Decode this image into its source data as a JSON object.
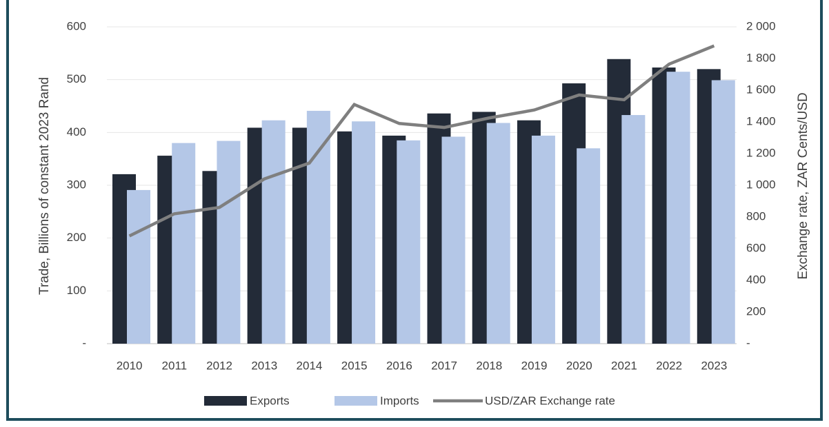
{
  "chart_data": {
    "type": "bar",
    "categories": [
      "2010",
      "2011",
      "2012",
      "2013",
      "2014",
      "2015",
      "2016",
      "2017",
      "2018",
      "2019",
      "2020",
      "2021",
      "2022",
      "2023"
    ],
    "series": [
      {
        "name": "Exports",
        "color": "#232b38",
        "values": [
          321,
          356,
          327,
          409,
          409,
          402,
          394,
          436,
          439,
          423,
          493,
          539,
          523,
          520
        ]
      },
      {
        "name": "Imports",
        "color": "#b4c7e7",
        "values": [
          291,
          380,
          384,
          423,
          441,
          421,
          385,
          392,
          418,
          394,
          370,
          433,
          515,
          499
        ]
      },
      {
        "name": "USD/ZAR Exchange rate",
        "color": "#7f7f7f",
        "type": "line",
        "axis": "y2",
        "values": [
          680,
          820,
          860,
          1040,
          1140,
          1510,
          1390,
          1365,
          1425,
          1475,
          1570,
          1540,
          1765,
          1880
        ]
      }
    ],
    "ylabel": "Trade, Billions of constant 2023 Rand",
    "y2label": "Exchange rate, ZAR Cents/USD",
    "ylim": [
      0,
      600
    ],
    "yticks": [
      {
        "value": 0,
        "label": "-"
      },
      100,
      200,
      300,
      400,
      500,
      600
    ],
    "y2lim": [
      0,
      2000
    ],
    "y2ticks": [
      {
        "value": 0,
        "label": "-"
      },
      200,
      400,
      600,
      800,
      {
        "value": 1000,
        "label": "1 000"
      },
      {
        "value": 1200,
        "label": "1 200"
      },
      {
        "value": 1400,
        "label": "1 400"
      },
      {
        "value": 1600,
        "label": "1 600"
      },
      {
        "value": 1800,
        "label": "1 800"
      },
      {
        "value": 2000,
        "label": "2 000"
      }
    ],
    "grid": true,
    "legend": "bottom"
  }
}
